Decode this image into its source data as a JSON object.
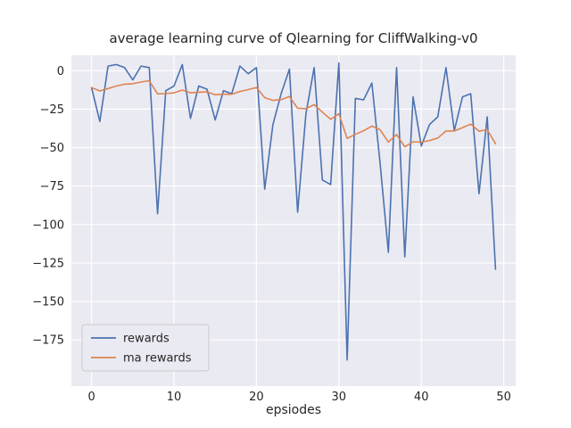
{
  "chart_data": {
    "type": "line",
    "title": "average learning curve of Qlearning for CliffWalking-v0",
    "xlabel": "epsiodes",
    "ylabel": "",
    "x": [
      0,
      1,
      2,
      3,
      4,
      5,
      6,
      7,
      8,
      9,
      10,
      11,
      12,
      13,
      14,
      15,
      16,
      17,
      18,
      19,
      20,
      21,
      22,
      23,
      24,
      25,
      26,
      27,
      28,
      29,
      30,
      31,
      32,
      33,
      34,
      35,
      36,
      37,
      38,
      39,
      40,
      41,
      42,
      43,
      44,
      45,
      46,
      47,
      48,
      49
    ],
    "series": [
      {
        "name": "rewards",
        "color": "#4c72b0",
        "values": [
          -11,
          -33,
          3,
          4,
          2,
          -6,
          3,
          2,
          -93,
          -13,
          -10,
          4,
          -31,
          -10,
          -12,
          -32,
          -13,
          -15,
          3,
          -2,
          2,
          -77,
          -35,
          -15,
          1,
          -92,
          -28,
          2,
          -71,
          -74,
          5,
          -188,
          -18,
          -19,
          -8,
          -60,
          -118,
          2,
          -121,
          -17,
          -49,
          -35,
          -30,
          2,
          -39,
          -17,
          -15,
          -80,
          -30,
          -129
        ]
      },
      {
        "name": "ma rewards",
        "color": "#dd8452",
        "values": [
          -11.0,
          -13.2,
          -11.6,
          -10.0,
          -8.8,
          -8.5,
          -7.4,
          -6.5,
          -15.1,
          -14.9,
          -14.4,
          -12.6,
          -14.4,
          -14.0,
          -13.8,
          -15.6,
          -15.3,
          -15.3,
          -13.5,
          -12.3,
          -10.9,
          -17.5,
          -19.3,
          -18.8,
          -16.8,
          -24.4,
          -24.7,
          -22.1,
          -26.9,
          -31.6,
          -28.0,
          -44.0,
          -41.4,
          -39.1,
          -36.0,
          -38.4,
          -46.4,
          -41.5,
          -49.5,
          -46.2,
          -46.5,
          -45.4,
          -43.8,
          -39.2,
          -39.2,
          -37.0,
          -34.8,
          -39.3,
          -38.4,
          -47.5
        ]
      }
    ],
    "xlim": [
      -2.45,
      51.45
    ],
    "ylim": [
      -205,
      10
    ],
    "xticks": [
      0,
      10,
      20,
      30,
      40,
      50
    ],
    "yticks": [
      0,
      -25,
      -50,
      -75,
      -100,
      -125,
      -150,
      -175
    ],
    "grid": true,
    "legend_position": "lower left",
    "background_color": "#eaeaf2",
    "grid_color": "#ffffff",
    "legend_border_color": "#cccccc",
    "text_color": "#262626"
  }
}
